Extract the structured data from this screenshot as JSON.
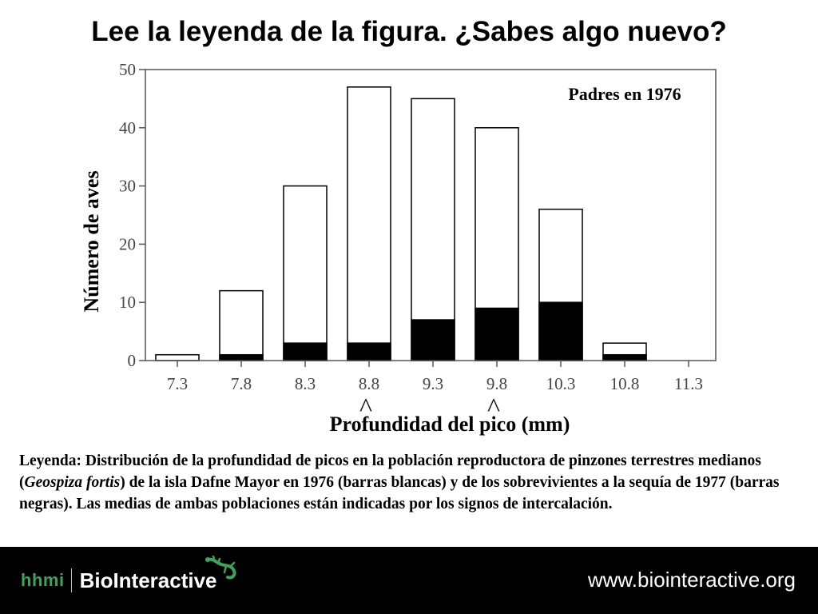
{
  "title": "Lee la leyenda de la figura. ¿Sabes algo nuevo?",
  "chart_data": {
    "type": "bar",
    "inset_label": "Padres en 1976",
    "xlabel": "Profundidad del pico (mm)",
    "ylabel": "Número de aves",
    "categories": [
      "7.3",
      "7.8",
      "8.3",
      "8.8",
      "9.3",
      "9.8",
      "10.3",
      "10.8",
      "11.3"
    ],
    "series": [
      {
        "color": "#ffffff",
        "values": [
          1,
          12,
          30,
          47,
          45,
          40,
          26,
          3,
          0
        ]
      },
      {
        "color": "#000000",
        "values": [
          0,
          1,
          3,
          3,
          7,
          9,
          10,
          1,
          0
        ]
      }
    ],
    "ylim": [
      0,
      50
    ],
    "yticks": [
      0,
      10,
      20,
      30,
      40,
      50
    ],
    "mean_markers": [
      {
        "category": "8.8",
        "symbol": "^"
      },
      {
        "category": "9.8",
        "symbol": "^"
      }
    ],
    "grid": false,
    "legend": "none"
  },
  "caption": {
    "part1": "Leyenda: Distribución de la profundidad de picos en la población reproductora de pinzones terrestres medianos (",
    "species": "Geospiza fortis",
    "part2": ") de la isla Dafne Mayor en 1976 (barras blancas) y de los sobrevivientes a la sequía de 1977 (barras negras). Las medias de ambas poblaciones están indicadas por los signos de intercalación."
  },
  "footer": {
    "brand_left": "hhmi",
    "brand_right": "BioInteractive",
    "logo_icon": "lizard-icon",
    "url": "www.biointeractive.org",
    "background": "#000000",
    "hhmi_color": "#3aa65a"
  }
}
